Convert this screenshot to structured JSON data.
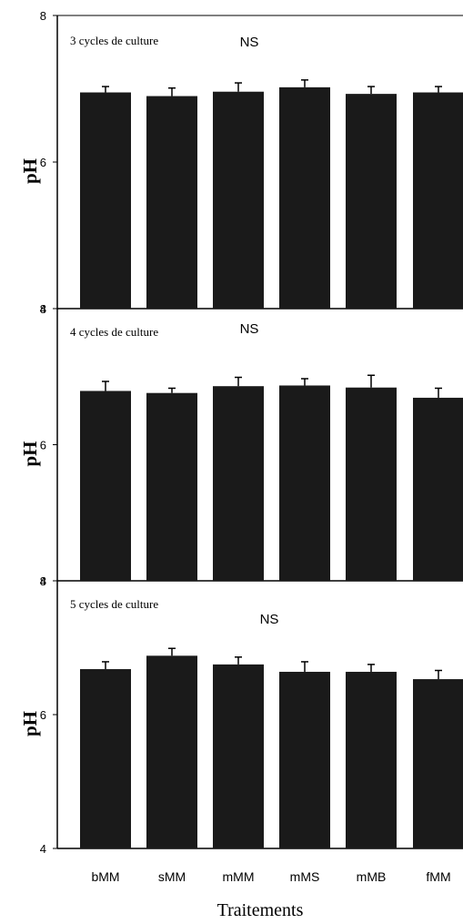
{
  "chart_data": {
    "type": "bar",
    "xlabel": "Traitements",
    "categories": [
      "bMM",
      "sMM",
      "mMM",
      "mMS",
      "mMB",
      "fMM"
    ],
    "ylabel": "pH",
    "ylim": [
      4,
      8
    ],
    "ytick_values": [
      4,
      6,
      8
    ],
    "bar_color": "#1a1a1a",
    "grid": false,
    "panels": [
      {
        "title": "3 cycles de culture",
        "significance": "NS",
        "values": [
          6.95,
          6.9,
          6.96,
          7.02,
          6.93,
          6.95
        ],
        "errors": [
          0.08,
          0.11,
          0.12,
          0.1,
          0.1,
          0.08
        ]
      },
      {
        "title": "4 cycles de culture",
        "significance": "NS",
        "values": [
          6.79,
          6.76,
          6.86,
          6.87,
          6.84,
          6.69
        ],
        "errors": [
          0.14,
          0.07,
          0.13,
          0.1,
          0.18,
          0.14
        ]
      },
      {
        "title": "5 cycles de culture",
        "significance": "NS",
        "values": [
          6.68,
          6.88,
          6.75,
          6.64,
          6.64,
          6.53
        ],
        "errors": [
          0.11,
          0.11,
          0.11,
          0.15,
          0.11,
          0.13
        ]
      }
    ]
  }
}
